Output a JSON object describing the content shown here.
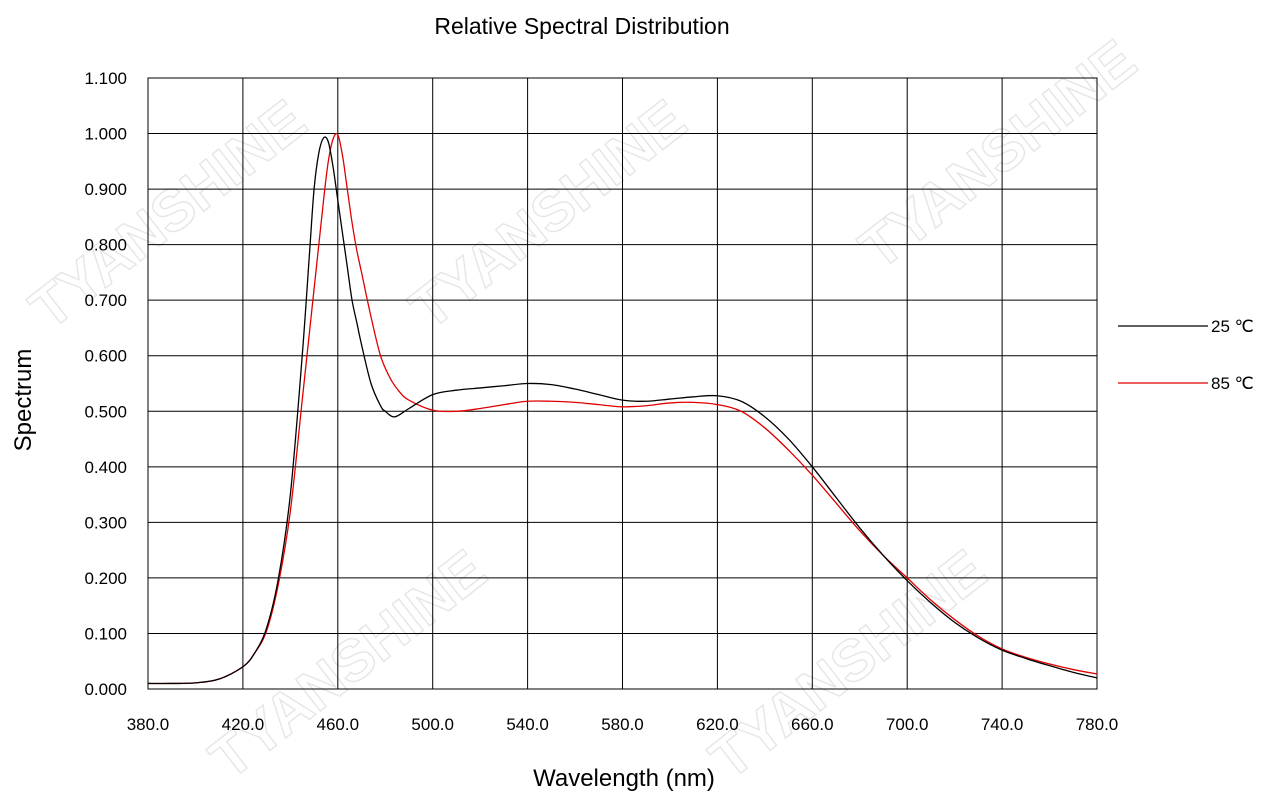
{
  "chart_data": {
    "type": "line",
    "title": "Relative Spectral Distribution",
    "xlabel": "Wavelength (nm)",
    "ylabel": "Spectrum",
    "xlim": [
      380,
      780
    ],
    "ylim": [
      0,
      1.1
    ],
    "x_ticks": [
      "380.0",
      "420.0",
      "460.0",
      "500.0",
      "540.0",
      "580.0",
      "620.0",
      "660.0",
      "700.0",
      "740.0",
      "780.0"
    ],
    "y_ticks": [
      "0.000",
      "0.100",
      "0.200",
      "0.300",
      "0.400",
      "0.500",
      "0.600",
      "0.700",
      "0.800",
      "0.900",
      "1.000",
      "1.100"
    ],
    "grid": true,
    "legend_position": "right",
    "watermark": "TYANSHINE",
    "series": [
      {
        "name": "25 ℃",
        "color": "#000000",
        "x": [
          380,
          390,
          400,
          410,
          420,
          425,
          430,
          435,
          440,
          445,
          448,
          450,
          452,
          454,
          456,
          458,
          460,
          462,
          464,
          466,
          468,
          470,
          474,
          478,
          480,
          484,
          490,
          500,
          510,
          520,
          530,
          540,
          550,
          560,
          570,
          580,
          590,
          600,
          610,
          620,
          630,
          640,
          650,
          660,
          670,
          680,
          690,
          700,
          710,
          720,
          730,
          740,
          750,
          760,
          770,
          780
        ],
        "values": [
          0.01,
          0.01,
          0.011,
          0.018,
          0.04,
          0.065,
          0.11,
          0.2,
          0.35,
          0.6,
          0.78,
          0.9,
          0.965,
          0.992,
          0.985,
          0.94,
          0.88,
          0.82,
          0.76,
          0.7,
          0.66,
          0.62,
          0.55,
          0.51,
          0.5,
          0.49,
          0.505,
          0.53,
          0.538,
          0.542,
          0.546,
          0.55,
          0.548,
          0.54,
          0.53,
          0.52,
          0.518,
          0.522,
          0.526,
          0.528,
          0.518,
          0.49,
          0.45,
          0.4,
          0.345,
          0.29,
          0.24,
          0.195,
          0.155,
          0.12,
          0.092,
          0.07,
          0.055,
          0.042,
          0.03,
          0.02
        ]
      },
      {
        "name": "85 ℃",
        "color": "#e00000",
        "x": [
          380,
          390,
          400,
          410,
          420,
          425,
          430,
          435,
          440,
          445,
          450,
          454,
          456,
          458,
          460,
          462,
          464,
          466,
          468,
          470,
          474,
          478,
          482,
          486,
          490,
          500,
          510,
          520,
          530,
          540,
          550,
          560,
          570,
          580,
          590,
          600,
          610,
          620,
          630,
          640,
          650,
          660,
          670,
          680,
          690,
          700,
          710,
          720,
          730,
          740,
          750,
          760,
          770,
          780
        ],
        "values": [
          0.01,
          0.01,
          0.011,
          0.018,
          0.04,
          0.065,
          0.105,
          0.19,
          0.32,
          0.52,
          0.72,
          0.88,
          0.95,
          0.99,
          0.998,
          0.96,
          0.9,
          0.84,
          0.79,
          0.75,
          0.67,
          0.6,
          0.56,
          0.535,
          0.52,
          0.502,
          0.5,
          0.505,
          0.512,
          0.518,
          0.518,
          0.516,
          0.512,
          0.508,
          0.51,
          0.515,
          0.516,
          0.512,
          0.5,
          0.47,
          0.43,
          0.385,
          0.335,
          0.285,
          0.24,
          0.2,
          0.16,
          0.125,
          0.095,
          0.072,
          0.057,
          0.045,
          0.035,
          0.027
        ]
      }
    ]
  }
}
